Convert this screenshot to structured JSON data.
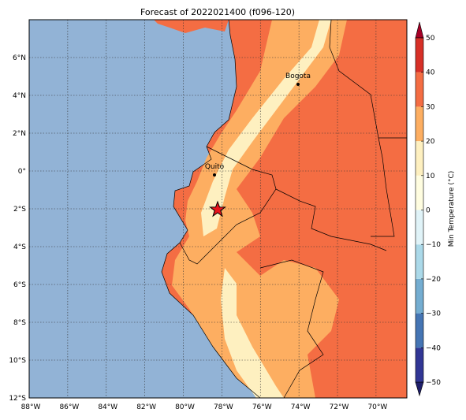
{
  "title": "Forecast of 2022021400 (f096-120)",
  "map": {
    "xlim": [
      -88,
      -68.4
    ],
    "ylim": [
      -12,
      8
    ],
    "xticks": [
      {
        "value": -88,
        "label": "88°W"
      },
      {
        "value": -86,
        "label": "86°W"
      },
      {
        "value": -84,
        "label": "84°W"
      },
      {
        "value": -82,
        "label": "82°W"
      },
      {
        "value": -80,
        "label": "80°W"
      },
      {
        "value": -78,
        "label": "78°W"
      },
      {
        "value": -76,
        "label": "76°W"
      },
      {
        "value": -74,
        "label": "74°W"
      },
      {
        "value": -72,
        "label": "72°W"
      },
      {
        "value": -70,
        "label": "70°W"
      }
    ],
    "yticks": [
      {
        "value": -12,
        "label": "12°S"
      },
      {
        "value": -10,
        "label": "10°S"
      },
      {
        "value": -8,
        "label": "8°S"
      },
      {
        "value": -6,
        "label": "6°S"
      },
      {
        "value": -4,
        "label": "4°S"
      },
      {
        "value": -2,
        "label": "2°S"
      },
      {
        "value": 0,
        "label": "0°"
      },
      {
        "value": 2,
        "label": "2°N"
      },
      {
        "value": 4,
        "label": "4°N"
      },
      {
        "value": 6,
        "label": "6°N"
      }
    ],
    "grid": true,
    "cities": [
      "Quito",
      "Bogota"
    ]
  },
  "colorbar": {
    "label": "Min Temperature (°C)",
    "lim": [
      -50,
      50
    ],
    "ticks": [
      {
        "value": -50,
        "label": "−50"
      },
      {
        "value": -40,
        "label": "−40"
      },
      {
        "value": -30,
        "label": "−30"
      },
      {
        "value": -20,
        "label": "−20"
      },
      {
        "value": -10,
        "label": "−10"
      },
      0,
      10,
      20,
      30,
      40,
      50
    ],
    "colors": [
      "#1f1f6b",
      "#313695",
      "#4575b4",
      "#74add1",
      "#abd9e9",
      "#e0f3f8",
      "#fffde0",
      "#fef0c0",
      "#fdae61",
      "#f46d43",
      "#d73027",
      "#a50026"
    ]
  }
}
